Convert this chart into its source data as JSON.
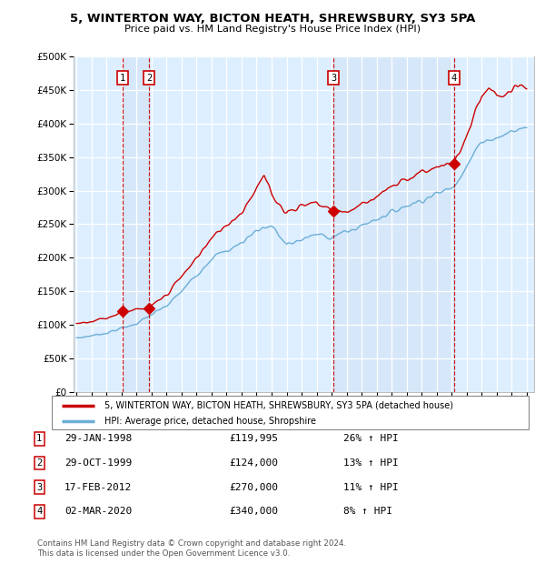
{
  "title1": "5, WINTERTON WAY, BICTON HEATH, SHREWSBURY, SY3 5PA",
  "title2": "Price paid vs. HM Land Registry's House Price Index (HPI)",
  "background_color": "#ffffff",
  "plot_bg_color": "#ddeeff",
  "grid_color": "#ffffff",
  "sale_dates": [
    1998.08,
    1999.83,
    2012.12,
    2020.17
  ],
  "sale_prices": [
    119995,
    124000,
    270000,
    340000
  ],
  "sale_labels": [
    "1",
    "2",
    "3",
    "4"
  ],
  "legend_label_red": "5, WINTERTON WAY, BICTON HEATH, SHREWSBURY, SY3 5PA (detached house)",
  "legend_label_blue": "HPI: Average price, detached house, Shropshire",
  "table_rows": [
    [
      "1",
      "29-JAN-1998",
      "£119,995",
      "26% ↑ HPI"
    ],
    [
      "2",
      "29-OCT-1999",
      "£124,000",
      "13% ↑ HPI"
    ],
    [
      "3",
      "17-FEB-2012",
      "£270,000",
      "11% ↑ HPI"
    ],
    [
      "4",
      "02-MAR-2020",
      "£340,000",
      "8% ↑ HPI"
    ]
  ],
  "footer": "Contains HM Land Registry data © Crown copyright and database right 2024.\nThis data is licensed under the Open Government Licence v3.0.",
  "ylim": [
    0,
    500000
  ],
  "yticks": [
    0,
    50000,
    100000,
    150000,
    200000,
    250000,
    300000,
    350000,
    400000,
    450000,
    500000
  ],
  "xlim_start": 1994.8,
  "xlim_end": 2025.5,
  "xtick_years": [
    1995,
    1996,
    1997,
    1998,
    1999,
    2000,
    2001,
    2002,
    2003,
    2004,
    2005,
    2006,
    2007,
    2008,
    2009,
    2010,
    2011,
    2012,
    2013,
    2014,
    2015,
    2016,
    2017,
    2018,
    2019,
    2020,
    2021,
    2022,
    2023,
    2024,
    2025
  ],
  "hpi_anchors": {
    "1995.0": 80000,
    "1996.0": 84000,
    "1997.0": 88000,
    "1998.0": 95000,
    "1999.0": 102000,
    "2000.0": 115000,
    "2001.0": 128000,
    "2002.0": 150000,
    "2003.0": 175000,
    "2004.0": 200000,
    "2005.0": 210000,
    "2006.0": 222000,
    "2007.0": 242000,
    "2008.0": 248000,
    "2009.0": 218000,
    "2010.0": 228000,
    "2011.0": 234000,
    "2012.0": 232000,
    "2013.0": 238000,
    "2014.0": 248000,
    "2015.0": 258000,
    "2016.0": 268000,
    "2017.0": 278000,
    "2018.0": 286000,
    "2019.0": 295000,
    "2020.0": 305000,
    "2021.0": 335000,
    "2022.0": 375000,
    "2023.0": 378000,
    "2024.0": 388000,
    "2025.0": 395000
  },
  "red_anchors": {
    "1995.0": 102000,
    "1996.0": 106000,
    "1997.0": 110000,
    "1998.08": 119995,
    "1999.0": 122000,
    "1999.83": 124000,
    "2001.0": 145000,
    "2002.5": 185000,
    "2003.5": 215000,
    "2004.5": 240000,
    "2005.0": 250000,
    "2006.0": 268000,
    "2007.0": 305000,
    "2007.5": 320000,
    "2008.0": 295000,
    "2009.0": 268000,
    "2010.0": 278000,
    "2011.0": 282000,
    "2012.12": 270000,
    "2013.0": 268000,
    "2014.0": 280000,
    "2015.0": 292000,
    "2016.0": 304000,
    "2017.0": 318000,
    "2018.0": 328000,
    "2019.0": 335000,
    "2020.17": 340000,
    "2021.0": 380000,
    "2022.0": 440000,
    "2022.5": 450000,
    "2023.0": 440000,
    "2024.0": 445000,
    "2024.5": 455000
  }
}
